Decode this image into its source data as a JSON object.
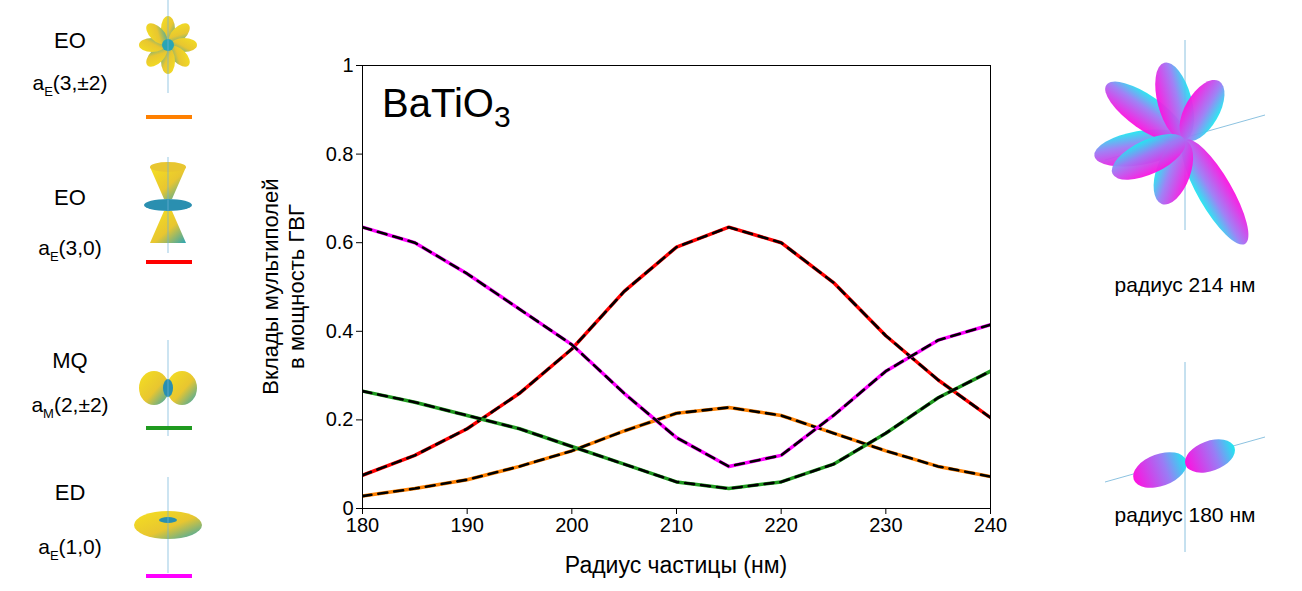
{
  "chart_data": {
    "type": "line",
    "title": "BaTiO3",
    "xlabel": "Радиус частицы (нм)",
    "ylabel": "Вклады мультиполей\nв мощность ГВГ",
    "x": [
      180,
      185,
      190,
      195,
      200,
      205,
      210,
      215,
      220,
      225,
      230,
      235,
      240
    ],
    "xlim": [
      180,
      240
    ],
    "xticks": [
      180,
      190,
      200,
      210,
      220,
      230,
      240
    ],
    "ylim": [
      0,
      1
    ],
    "yticks": [
      0,
      0.2,
      0.4,
      0.6,
      0.8,
      1
    ],
    "legend": "left",
    "series": [
      {
        "name": "EO aE(3,±2)",
        "color": "#ff8000",
        "line_style": "dashed",
        "values": [
          0.028,
          0.045,
          0.065,
          0.095,
          0.13,
          0.175,
          0.215,
          0.228,
          0.21,
          0.17,
          0.13,
          0.095,
          0.072
        ]
      },
      {
        "name": "EO aE(3,0)",
        "color": "#ff0000",
        "line_style": "dashed",
        "values": [
          0.075,
          0.12,
          0.18,
          0.26,
          0.36,
          0.49,
          0.59,
          0.635,
          0.6,
          0.51,
          0.39,
          0.29,
          0.205
        ]
      },
      {
        "name": "MQ aM(2,±2)",
        "color": "#1f9a1f",
        "line_style": "dashed",
        "values": [
          0.265,
          0.24,
          0.21,
          0.18,
          0.14,
          0.1,
          0.06,
          0.045,
          0.06,
          0.1,
          0.17,
          0.25,
          0.31
        ]
      },
      {
        "name": "ED aE(1,0)",
        "color": "#ff00ff",
        "line_style": "dashed",
        "values": [
          0.635,
          0.6,
          0.53,
          0.45,
          0.37,
          0.26,
          0.16,
          0.095,
          0.12,
          0.21,
          0.31,
          0.38,
          0.415
        ]
      }
    ],
    "annotations": [
      "радиус 214 нм",
      "радиус 180 нм"
    ]
  }
}
